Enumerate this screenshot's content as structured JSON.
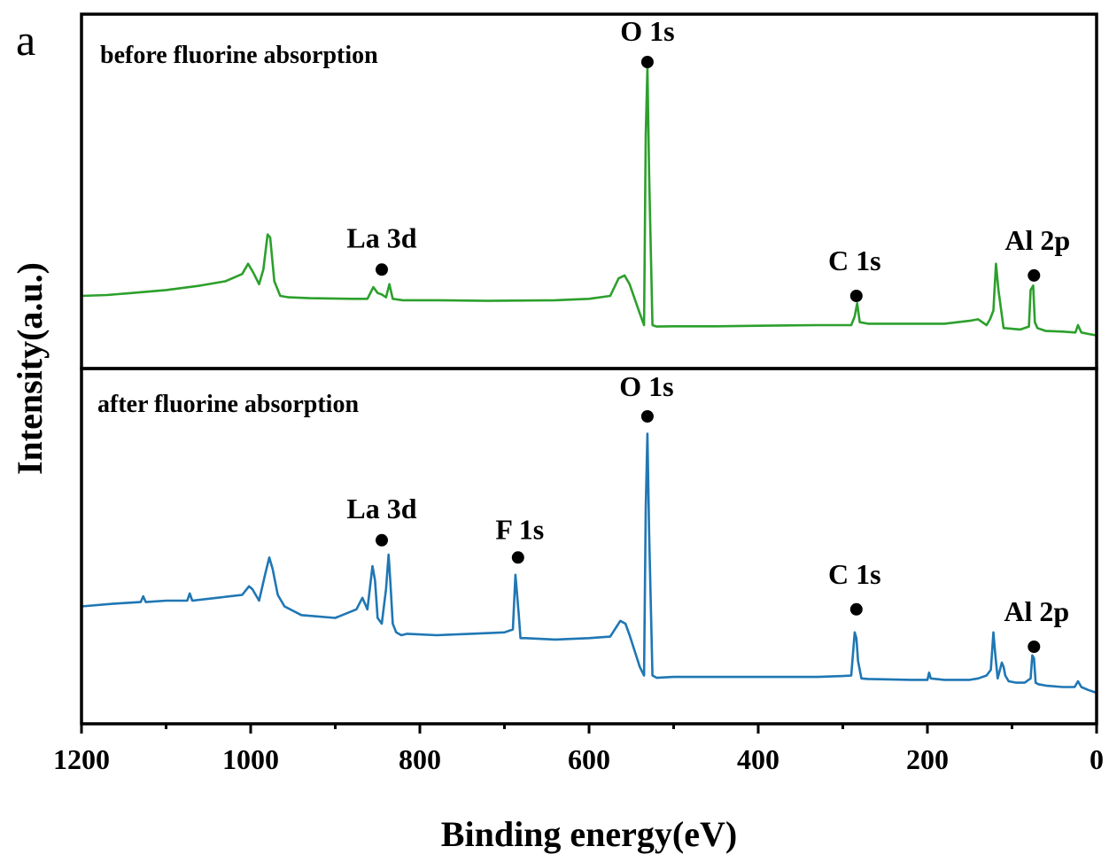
{
  "figure_label": "a",
  "colors": {
    "before": "#2ca02c",
    "after": "#1f77b4",
    "axis": "#000000"
  },
  "chart_data": {
    "type": "line",
    "xlabel": "Binding energy(eV)",
    "ylabel": "Intensity(a.u.)",
    "xlim": [
      1200,
      0
    ],
    "x_reversed": true,
    "x_ticks": [
      {
        "value": 1200,
        "label": "1200"
      },
      {
        "value": 1000,
        "label": "1000"
      },
      {
        "value": 800,
        "label": "800"
      },
      {
        "value": 600,
        "label": "600"
      },
      {
        "value": 400,
        "label": "400"
      },
      {
        "value": 200,
        "label": "200"
      },
      {
        "value": 0,
        "label": "0"
      }
    ],
    "x_minor_step": 100,
    "y_ticks_shown": false,
    "ylim": [
      0,
      100
    ],
    "grid": false,
    "panels": [
      {
        "title": "before fluorine absorption",
        "color": "#2ca02c",
        "series": [
          {
            "x": [
              1200,
              1170,
              1140,
              1100,
              1060,
              1030,
              1010,
              1003,
              997,
              990,
              985,
              980,
              977,
              972,
              965,
              955,
              930,
              880,
              862,
              855,
              850,
              845,
              840,
              836,
              832,
              820,
              780,
              720,
              640,
              600,
              575,
              565,
              558,
              552,
              540,
              535,
              533,
              531,
              529,
              525,
              520,
              500,
              450,
              400,
              330,
              290,
              286,
              283,
              280,
              270,
              220,
              180,
              150,
              140,
              130,
              126,
              122,
              119,
              116,
              110,
              90,
              80,
              78,
              75,
              73,
              70,
              60,
              40,
              25,
              22,
              18,
              10,
              0
            ],
            "y": [
              20,
              20.3,
              21,
              22,
              23.5,
              25,
              27.5,
              31,
              28,
              24,
              29,
              41,
              40,
              25,
              20,
              19.5,
              19.2,
              19,
              19,
              23,
              21,
              20.5,
              19.5,
              24,
              19,
              18.5,
              18.5,
              18.3,
              18.5,
              19,
              20,
              26,
              27,
              24,
              14,
              10,
              75,
              98,
              62,
              10,
              9.5,
              9.6,
              9.6,
              9.8,
              10,
              10,
              13,
              17.5,
              11,
              10.5,
              10.5,
              10.5,
              11.5,
              12,
              10,
              12,
              15,
              31,
              22,
              9,
              8.5,
              9.5,
              22,
              23.5,
              11,
              9,
              8,
              7.8,
              7.5,
              10,
              7.5,
              7,
              6.5
            ]
          }
        ],
        "annotations": [
          {
            "label": "O 1s",
            "x": 531,
            "y": 100
          },
          {
            "label": "La 3d",
            "x": 845,
            "y": 29
          },
          {
            "label": "C 1s",
            "x": 284,
            "y": 20
          },
          {
            "label": "Al 2p",
            "x": 74,
            "y": 27
          }
        ]
      },
      {
        "title": "after fluorine absorption",
        "color": "#1f77b4",
        "series": [
          {
            "x": [
              1200,
              1160,
              1130,
              1127,
              1124,
              1100,
              1075,
              1072,
              1069,
              1040,
              1010,
              1002,
              998,
              990,
              983,
              978,
              974,
              968,
              960,
              940,
              900,
              875,
              868,
              862,
              856,
              853,
              850,
              845,
              840,
              837,
              835,
              832,
              828,
              822,
              815,
              780,
              740,
              700,
              690,
              687,
              685,
              683,
              681,
              675,
              640,
              600,
              575,
              563,
              557,
              552,
              540,
              535,
              533,
              531,
              529,
              525,
              520,
              500,
              460,
              400,
              330,
              300,
              290,
              286,
              284,
              282,
              278,
              270,
              220,
              200,
              198,
              196,
              180,
              150,
              140,
              130,
              125,
              122,
              120,
              117,
              112,
              110,
              108,
              104,
              95,
              85,
              78,
              76,
              74,
              72,
              69,
              60,
              40,
              26,
              22,
              18,
              10,
              0
            ],
            "y": [
              34,
              35,
              35.5,
              37.5,
              35.5,
              36,
              36,
              38.5,
              36,
              37,
              38,
              41,
              40,
              36,
              45,
              51,
              47,
              38,
              34,
              31,
              30,
              33,
              37,
              33,
              48,
              43,
              30,
              28,
              40,
              52,
              43,
              28,
              25,
              24,
              24.5,
              24,
              24.5,
              25,
              26,
              45,
              38,
              31,
              23,
              23,
              22.5,
              23,
              23.5,
              29,
              28,
              24,
              13,
              10,
              68,
              94,
              60,
              10,
              9.2,
              9.5,
              9.5,
              9.5,
              9.5,
              9.8,
              10,
              25,
              23,
              15,
              9,
              8.8,
              8.5,
              8.5,
              11,
              9,
              8.5,
              8.5,
              9,
              10,
              12,
              25,
              18,
              9,
              14.5,
              13,
              10,
              8,
              7.5,
              7.5,
              9,
              17,
              16,
              7.5,
              7,
              6.5,
              6,
              6,
              8,
              6,
              5,
              4
            ]
          }
        ],
        "annotations": [
          {
            "label": "O 1s",
            "x": 531,
            "y": 100
          },
          {
            "label": "La 3d",
            "x": 845,
            "y": 57
          },
          {
            "label": "F 1s",
            "x": 684,
            "y": 51
          },
          {
            "label": "C 1s",
            "x": 284,
            "y": 33
          },
          {
            "label": "Al 2p",
            "x": 74,
            "y": 20
          }
        ]
      }
    ]
  }
}
